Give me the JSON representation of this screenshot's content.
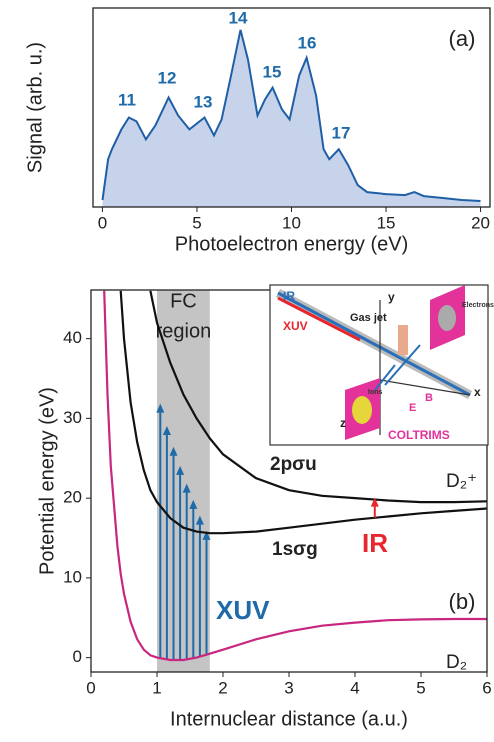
{
  "chart_data": [
    {
      "type": "area",
      "panel_label": "(a)",
      "x_label": "Photoelectron energy (eV)",
      "y_label": "Signal (arb. u.)",
      "x": [
        0,
        0.3,
        0.5,
        1.0,
        1.4,
        1.8,
        2.3,
        2.8,
        3.5,
        4.0,
        4.6,
        5.4,
        5.9,
        6.3,
        6.8,
        7.3,
        7.7,
        8.2,
        8.6,
        9.0,
        9.5,
        9.9,
        10.4,
        10.8,
        11.3,
        11.7,
        12.0,
        12.5,
        13.0,
        13.5,
        14,
        15,
        16,
        16.5,
        17,
        18,
        19,
        20
      ],
      "values": [
        0.035,
        0.24,
        0.29,
        0.39,
        0.45,
        0.43,
        0.34,
        0.41,
        0.55,
        0.46,
        0.39,
        0.45,
        0.36,
        0.44,
        0.66,
        0.89,
        0.74,
        0.46,
        0.54,
        0.6,
        0.49,
        0.44,
        0.66,
        0.75,
        0.56,
        0.29,
        0.24,
        0.29,
        0.21,
        0.11,
        0.075,
        0.065,
        0.06,
        0.075,
        0.055,
        0.045,
        0.035,
        0.03
      ],
      "color": "#1f5fa5",
      "fill": "#c6d3ea",
      "xlim": [
        -0.5,
        20.5
      ],
      "ylim": [
        0,
        1
      ],
      "xticks": [
        0,
        5,
        10,
        15,
        20
      ],
      "annotations": [
        "11",
        "12",
        "13",
        "14",
        "15",
        "16",
        "17"
      ],
      "annotation_color": "#1f6aa8"
    },
    {
      "type": "line",
      "panel_label": "(b)",
      "x_label": "Internuclear distance (a.u.)",
      "y_label": "Potential energy (eV)",
      "x": [
        0.2,
        0.25,
        0.3,
        0.4,
        0.45,
        0.5,
        0.6,
        0.7,
        0.8,
        0.9,
        1.0,
        1.2,
        1.4,
        1.6,
        1.8,
        2.0,
        2.5,
        3.0,
        3.5,
        4.0,
        4.5,
        5.0,
        5.5,
        6.0
      ],
      "series": [
        {
          "name": "D₂",
          "color": "#c8267f",
          "values": [
            46,
            33,
            24,
            14,
            10.5,
            8,
            4.5,
            2.3,
            1.0,
            0.3,
            0,
            -0.3,
            -0.3,
            0,
            0.5,
            1.0,
            2.3,
            3.3,
            4.0,
            4.4,
            4.7,
            4.8,
            4.85,
            4.85
          ]
        },
        {
          "name": "1sσg",
          "color": "#111111",
          "values": [
            null,
            null,
            null,
            null,
            46,
            40,
            32,
            27,
            23.5,
            21,
            19.5,
            17.5,
            16.3,
            15.8,
            15.6,
            15.6,
            15.8,
            16.3,
            16.8,
            17.3,
            17.7,
            18.1,
            18.4,
            18.7
          ]
        },
        {
          "name": "2pσu",
          "color": "#111111",
          "values": [
            null,
            null,
            null,
            null,
            null,
            null,
            null,
            null,
            null,
            46,
            42,
            37,
            33,
            30,
            27.5,
            25.5,
            22.5,
            21,
            20.3,
            20,
            19.7,
            19.5,
            19.5,
            19.6
          ]
        }
      ],
      "xlim": [
        0,
        6
      ],
      "ylim": [
        -1.8,
        46.1
      ],
      "xticks": [
        0,
        1,
        2,
        3,
        4,
        5,
        6
      ],
      "yticks": [
        0,
        10,
        20,
        30,
        40
      ],
      "shaded_region": {
        "label": [
          "FC",
          "region"
        ],
        "range": [
          1.0,
          1.8
        ],
        "color": "#c4c4c4"
      },
      "ion_label": "D₂⁺",
      "xuv_label": "XUV",
      "ir_label": "IR",
      "xuv_color": "#1f6aa8",
      "ir_color": "#e8262d",
      "inset_labels": [
        "IR",
        "XUV",
        "Gas jet",
        "y",
        "x",
        "z",
        "Electrons",
        "Ions",
        "COLTRIMS",
        "B",
        "E"
      ]
    }
  ]
}
